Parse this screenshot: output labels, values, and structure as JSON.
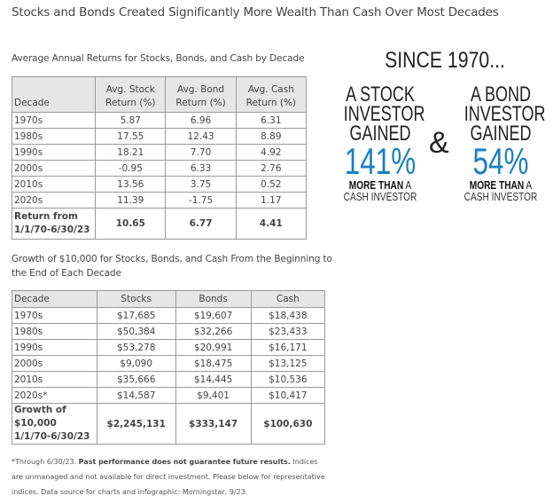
{
  "title": "Stocks and Bonds Created Significantly More Wealth Than Cash Over Most Decades",
  "table1": {
    "caption": "Average Annual Returns for Stocks, Bonds, and Cash by Decade",
    "headers": [
      "Decade",
      "Avg. Stock",
      "Return (%)",
      "Avg. Bond",
      "Return (%)",
      "Avg. Cash",
      "Return (%)"
    ],
    "rows": [
      [
        "1970s",
        "5.87",
        "6.96",
        "6.31"
      ],
      [
        "1980s",
        "17.55",
        "12.43",
        "8.89"
      ],
      [
        "1990s",
        "18.21",
        "7.70",
        "4.92"
      ],
      [
        "2000s",
        "-0.95",
        "6.33",
        "2.76"
      ],
      [
        "2010s",
        "13.56",
        "3.75",
        "0.52"
      ],
      [
        "2020s",
        "11.39",
        "-1.75",
        "1.17"
      ]
    ],
    "total": {
      "label1": "Return from",
      "label2": "1/1/70-6/30/23",
      "stock": "10.65",
      "bond": "6.77",
      "cash": "4.41"
    }
  },
  "table2": {
    "caption": "Growth of $10,000 for Stocks, Bonds, and Cash From the Beginning to the End of Each Decade",
    "headers": [
      "Decade",
      "Stocks",
      "Bonds",
      "Cash"
    ],
    "rows": [
      [
        "1970s",
        "$17,685",
        "$19,607",
        "$18,438"
      ],
      [
        "1980s",
        "$50,384",
        "$32,266",
        "$23,433"
      ],
      [
        "1990s",
        "$53,278",
        "$20,991",
        "$16,171"
      ],
      [
        "2000s",
        "$9,090",
        "$18,475",
        "$13,125"
      ],
      [
        "2010s",
        "$35,666",
        "$14,445",
        "$10,536"
      ],
      [
        "2020s*",
        "$14,587",
        "$9,401",
        "$10,417"
      ]
    ],
    "total": {
      "label1": "Growth of $10,000",
      "label2": "1/1/70-6/30/23",
      "stocks": "$2,245,131",
      "bonds": "$333,147",
      "cash": "$100,630"
    }
  },
  "footnote": {
    "part1": "*Through 6/30/23. ",
    "bold": "Past performance does not guarantee future results.",
    "part2": " Indices are unmanaged and not available for direct investment. Please below for representative indices. Data source for charts and infographic: Morningstar, 9/23."
  },
  "infographic": {
    "headline": "SINCE 1970...",
    "ampersand": "&",
    "accent_color": "#1a7fc1",
    "stock": {
      "line1": "A STOCK",
      "line2": "INVESTOR",
      "line3": "GAINED",
      "percent": "141%",
      "more_bold": "MORE THAN",
      "more_rest": " A",
      "cash": "CASH INVESTOR"
    },
    "bond": {
      "line1": "A BOND",
      "line2": "INVESTOR",
      "line3": "GAINED",
      "percent": "54%",
      "more_bold": "MORE THAN",
      "more_rest": " A",
      "cash": "CASH INVESTOR"
    }
  }
}
